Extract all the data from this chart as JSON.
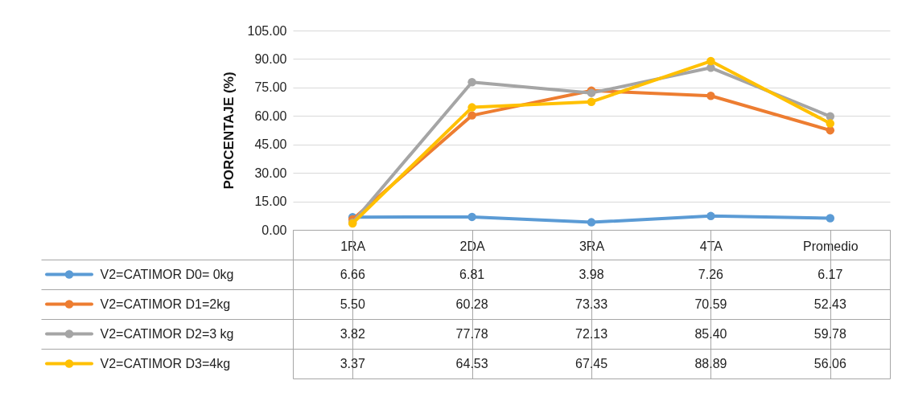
{
  "chart_data": {
    "type": "line",
    "ylabel": "PORCENTAJE (%)",
    "categories": [
      "1RA",
      "2DA",
      "3RA",
      "4TA",
      "Promedio"
    ],
    "series": [
      {
        "name": "V2=CATIMOR D0= 0kg",
        "color": "#5b9bd5",
        "values": [
          6.66,
          6.81,
          3.98,
          7.26,
          6.17
        ],
        "value_labels": [
          "6.66",
          "6.81",
          "3.98",
          "7.26",
          "6.17"
        ]
      },
      {
        "name": "V2=CATIMOR D1=2kg",
        "color": "#ed7d31",
        "values": [
          5.5,
          60.28,
          73.33,
          70.59,
          52.43
        ],
        "value_labels": [
          "5.50",
          "60.28",
          "73.33",
          "70.59",
          "52.43"
        ]
      },
      {
        "name": "V2=CATIMOR D2=3 kg",
        "color": "#a5a5a5",
        "values": [
          3.82,
          77.78,
          72.13,
          85.4,
          59.78
        ],
        "value_labels": [
          "3.82",
          "77.78",
          "72.13",
          "85.40",
          "59.78"
        ]
      },
      {
        "name": "V2=CATIMOR D3=4kg",
        "color": "#ffc000",
        "values": [
          3.37,
          64.53,
          67.45,
          88.89,
          56.06
        ],
        "value_labels": [
          "3.37",
          "64.53",
          "67.45",
          "88.89",
          "56.06"
        ]
      }
    ],
    "ylim": [
      0,
      105
    ],
    "yticks": [
      {
        "value": 0,
        "label": "0.00"
      },
      {
        "value": 15,
        "label": "15.00"
      },
      {
        "value": 30,
        "label": "30.00"
      },
      {
        "value": 45,
        "label": "45.00"
      },
      {
        "value": 60,
        "label": "60.00"
      },
      {
        "value": 75,
        "label": "75.00"
      },
      {
        "value": 90,
        "label": "90.00"
      },
      {
        "value": 105,
        "label": "105.00"
      }
    ],
    "grid": "y",
    "legend": "bottom left",
    "marker": "circle"
  }
}
